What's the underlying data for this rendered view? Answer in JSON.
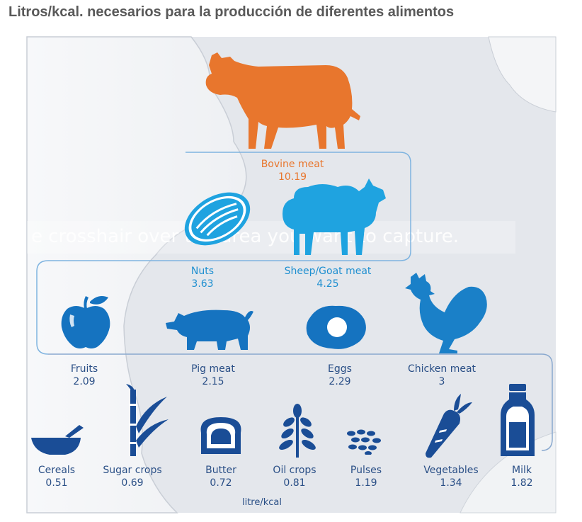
{
  "title": "Litros/kcal. necesarios para la producción de diferentes alimentos",
  "unit_label": "litre/kcal",
  "overlay_text": "e crosshair over the area you want to capture.",
  "colors": {
    "orange": "#e8762d",
    "light_blue": "#1fa3e0",
    "mid_blue": "#1573c0",
    "dark_blue": "#1a4d96",
    "bracket": "#7fb4e0"
  },
  "tiers": [
    {
      "name": "top",
      "items": [
        {
          "name": "Bovine meat",
          "value": "10.19",
          "icon": "cow-icon"
        }
      ]
    },
    {
      "name": "second",
      "items": [
        {
          "name": "Nuts",
          "value": "3.63",
          "icon": "nut-icon"
        },
        {
          "name": "Sheep/Goat meat",
          "value": "4.25",
          "icon": "sheep-icon"
        }
      ]
    },
    {
      "name": "third",
      "items": [
        {
          "name": "Fruits",
          "value": "2.09",
          "icon": "apple-icon"
        },
        {
          "name": "Pig meat",
          "value": "2.15",
          "icon": "pig-icon"
        },
        {
          "name": "Eggs",
          "value": "2.29",
          "icon": "egg-icon"
        },
        {
          "name": "Chicken meat",
          "value": "3",
          "icon": "chicken-icon"
        }
      ]
    },
    {
      "name": "bottom",
      "items": [
        {
          "name": "Cereals",
          "value": "0.51",
          "icon": "bowl-icon"
        },
        {
          "name": "Sugar crops",
          "value": "0.69",
          "icon": "sugarcane-icon"
        },
        {
          "name": "Butter",
          "value": "0.72",
          "icon": "butter-icon"
        },
        {
          "name": "Oil crops",
          "value": "0.81",
          "icon": "oil-crop-icon"
        },
        {
          "name": "Pulses",
          "value": "1.19",
          "icon": "pulses-icon"
        },
        {
          "name": "Vegetables",
          "value": "1.34",
          "icon": "carrot-icon"
        },
        {
          "name": "Milk",
          "value": "1.82",
          "icon": "milk-bottle-icon"
        }
      ]
    }
  ]
}
